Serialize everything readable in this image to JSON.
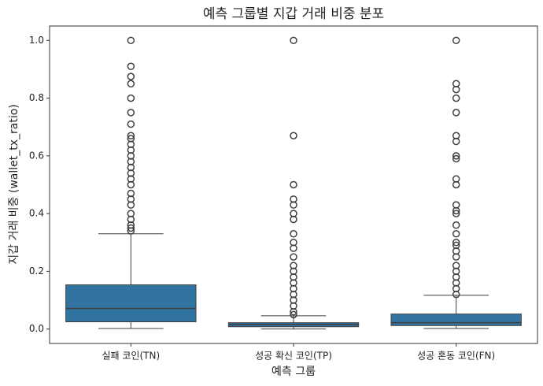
{
  "chart_data": {
    "type": "box",
    "title": "예측 그룹별 지갑 거래 비중 분포",
    "x_label": "예측 그룹",
    "y_label": "지갑 거래 비중 (wallet_tx_ratio)",
    "categories": [
      "실패 코인(TN)",
      "성공 확신 코인(TP)",
      "성공 혼동 코인(FN)"
    ],
    "color": "#3274a1",
    "boxes": [
      {
        "min": 0.002,
        "q1": 0.025,
        "median": 0.071,
        "q3": 0.153,
        "max": 0.33,
        "outliers": [
          1.0,
          0.91,
          0.875,
          0.85,
          0.8,
          0.75,
          0.71,
          0.67,
          0.66,
          0.64,
          0.62,
          0.6,
          0.58,
          0.56,
          0.54,
          0.52,
          0.5,
          0.47,
          0.45,
          0.43,
          0.4,
          0.38,
          0.36,
          0.35,
          0.34
        ]
      },
      {
        "min": 0.0,
        "q1": 0.008,
        "median": 0.016,
        "q3": 0.022,
        "max": 0.046,
        "outliers": [
          1.0,
          0.67,
          0.5,
          0.45,
          0.43,
          0.4,
          0.38,
          0.33,
          0.3,
          0.28,
          0.25,
          0.22,
          0.2,
          0.18,
          0.16,
          0.14,
          0.12,
          0.1,
          0.08,
          0.06,
          0.05
        ]
      },
      {
        "min": 0.002,
        "q1": 0.012,
        "median": 0.022,
        "q3": 0.052,
        "max": 0.117,
        "outliers": [
          1.0,
          0.85,
          0.83,
          0.8,
          0.75,
          0.67,
          0.65,
          0.6,
          0.59,
          0.52,
          0.5,
          0.43,
          0.41,
          0.4,
          0.36,
          0.33,
          0.3,
          0.29,
          0.27,
          0.25,
          0.22,
          0.2,
          0.18,
          0.16,
          0.14,
          0.12
        ]
      }
    ],
    "ylim": [
      -0.05,
      1.05
    ],
    "yticks": [
      {
        "value": 0,
        "label": "0.0"
      },
      0.2,
      0.4,
      0.6,
      0.8,
      {
        "value": 1,
        "label": "1.0"
      }
    ]
  }
}
